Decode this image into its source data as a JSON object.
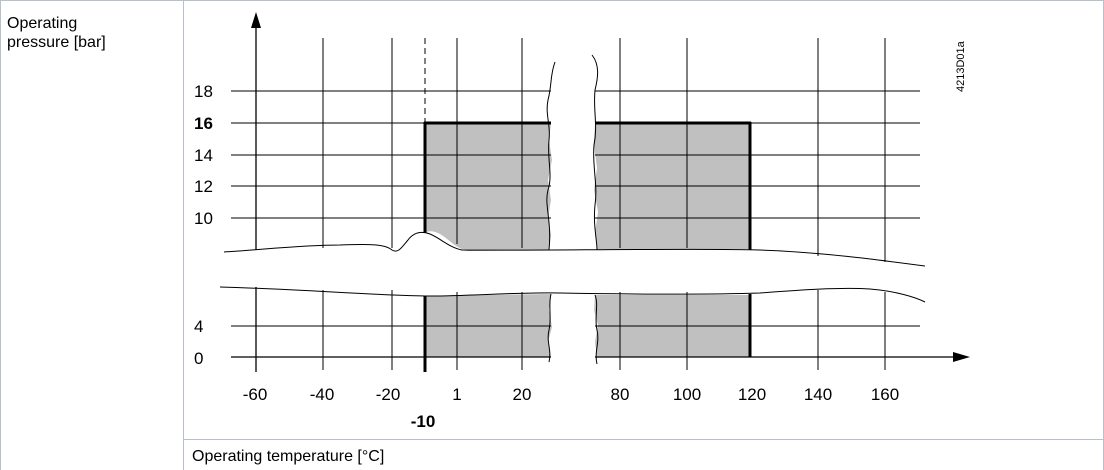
{
  "ylabel_text": "Operating\npressure [bar]",
  "xlabel_text": "Operating temperature [°C]",
  "drawing_code": "4213D01a",
  "colors": {
    "fill": "#c0c0c0",
    "grid": "#000000",
    "cell_border": "#b8c0cc"
  },
  "chart_data": {
    "type": "area",
    "ylabel": "Operating pressure [bar]",
    "xlabel": "Operating temperature [°C]",
    "x_tick_labels": [
      "-60",
      "-40",
      "-20",
      "1",
      "20",
      "80",
      "100",
      "120",
      "140",
      "160"
    ],
    "x_tick_labels_bold": [
      "-10"
    ],
    "y_tick_labels": [
      "0",
      "4",
      "10",
      "12",
      "14",
      "16",
      "18"
    ],
    "y_tick_labels_bold": [
      "16"
    ],
    "axis_breaks": {
      "x": [
        30,
        70
      ],
      "y": [
        4,
        10
      ]
    },
    "operating_range": {
      "t_min": -10,
      "t_max": 120,
      "p_min": 0,
      "p_max": 16
    },
    "grid": true
  }
}
